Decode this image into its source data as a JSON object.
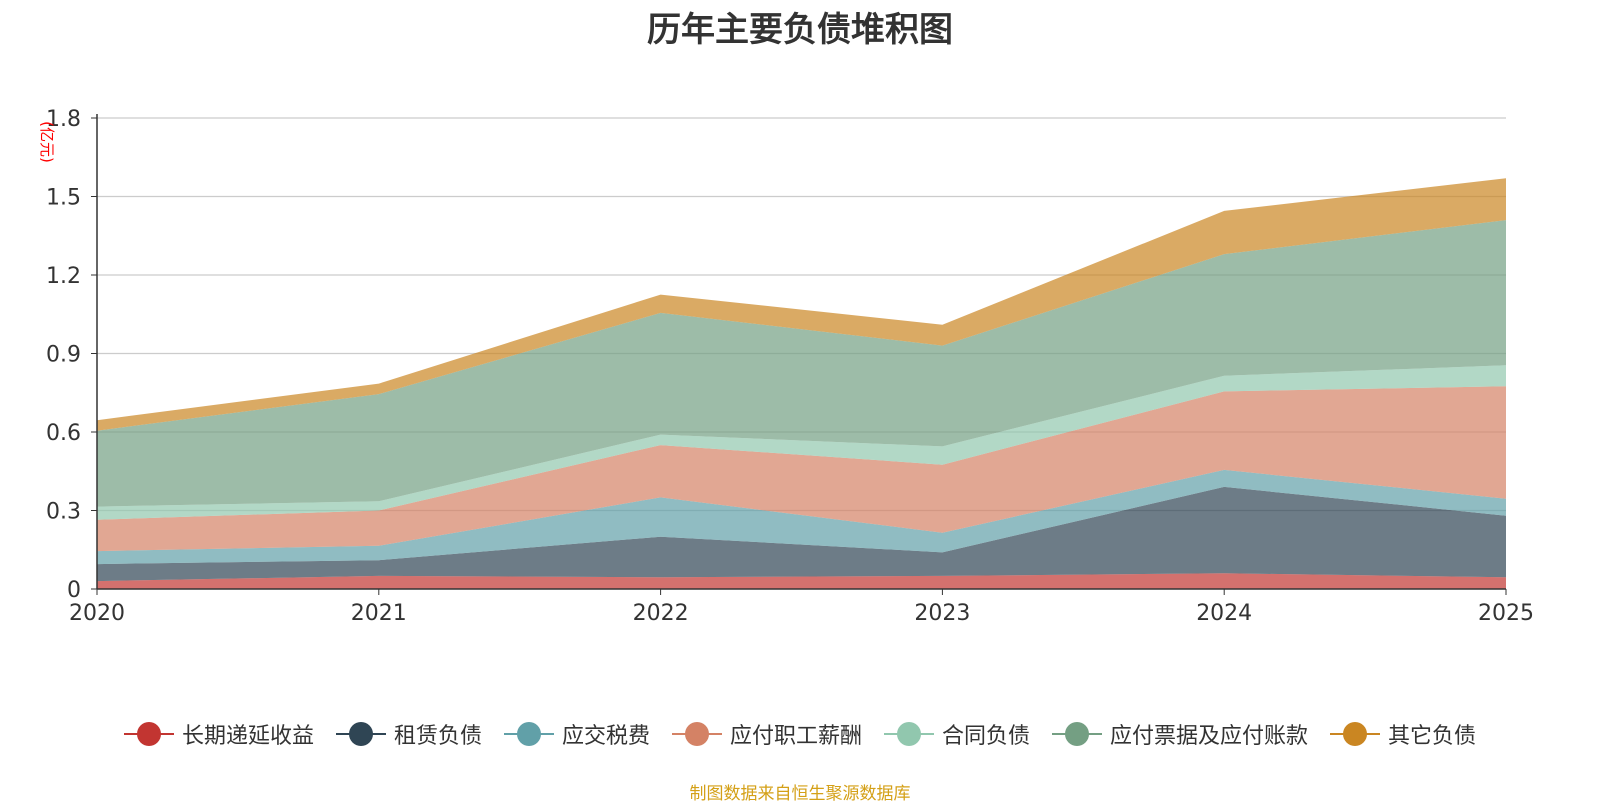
{
  "chart_data": {
    "type": "area",
    "stacked": true,
    "title": "历年主要负债堆积图",
    "ylabel": "(亿元)",
    "xlabel": "",
    "categories": [
      "2020",
      "2021",
      "2022",
      "2023",
      "2024",
      "2025"
    ],
    "ylim": [
      0,
      1.8
    ],
    "yticks": [
      "0",
      "0.3",
      "0.6",
      "0.9",
      "1.2",
      "1.5",
      "1.8"
    ],
    "grid": true,
    "legend_position": "bottom",
    "series": [
      {
        "name": "长期递延收益",
        "color": "#c23531",
        "values": [
          0.03,
          0.05,
          0.045,
          0.05,
          0.06,
          0.045
        ]
      },
      {
        "name": "租赁负债",
        "color": "#2f4554",
        "values": [
          0.065,
          0.06,
          0.155,
          0.09,
          0.33,
          0.235
        ]
      },
      {
        "name": "应交税费",
        "color": "#61a0a8",
        "values": [
          0.05,
          0.055,
          0.15,
          0.075,
          0.065,
          0.065
        ]
      },
      {
        "name": "应付职工薪酬",
        "color": "#d48265",
        "values": [
          0.12,
          0.135,
          0.2,
          0.26,
          0.3,
          0.43
        ]
      },
      {
        "name": "合同负债",
        "color": "#91c7ae",
        "values": [
          0.05,
          0.035,
          0.04,
          0.07,
          0.06,
          0.08
        ]
      },
      {
        "name": "应付票据及应付账款",
        "color": "#749f83",
        "values": [
          0.29,
          0.41,
          0.465,
          0.385,
          0.465,
          0.555
        ]
      },
      {
        "name": "其它负债",
        "color": "#ca8622",
        "values": [
          0.04,
          0.04,
          0.07,
          0.08,
          0.165,
          0.16
        ]
      }
    ]
  },
  "source_note": "制图数据来自恒生聚源数据库",
  "source_note_color": "#d4a017"
}
